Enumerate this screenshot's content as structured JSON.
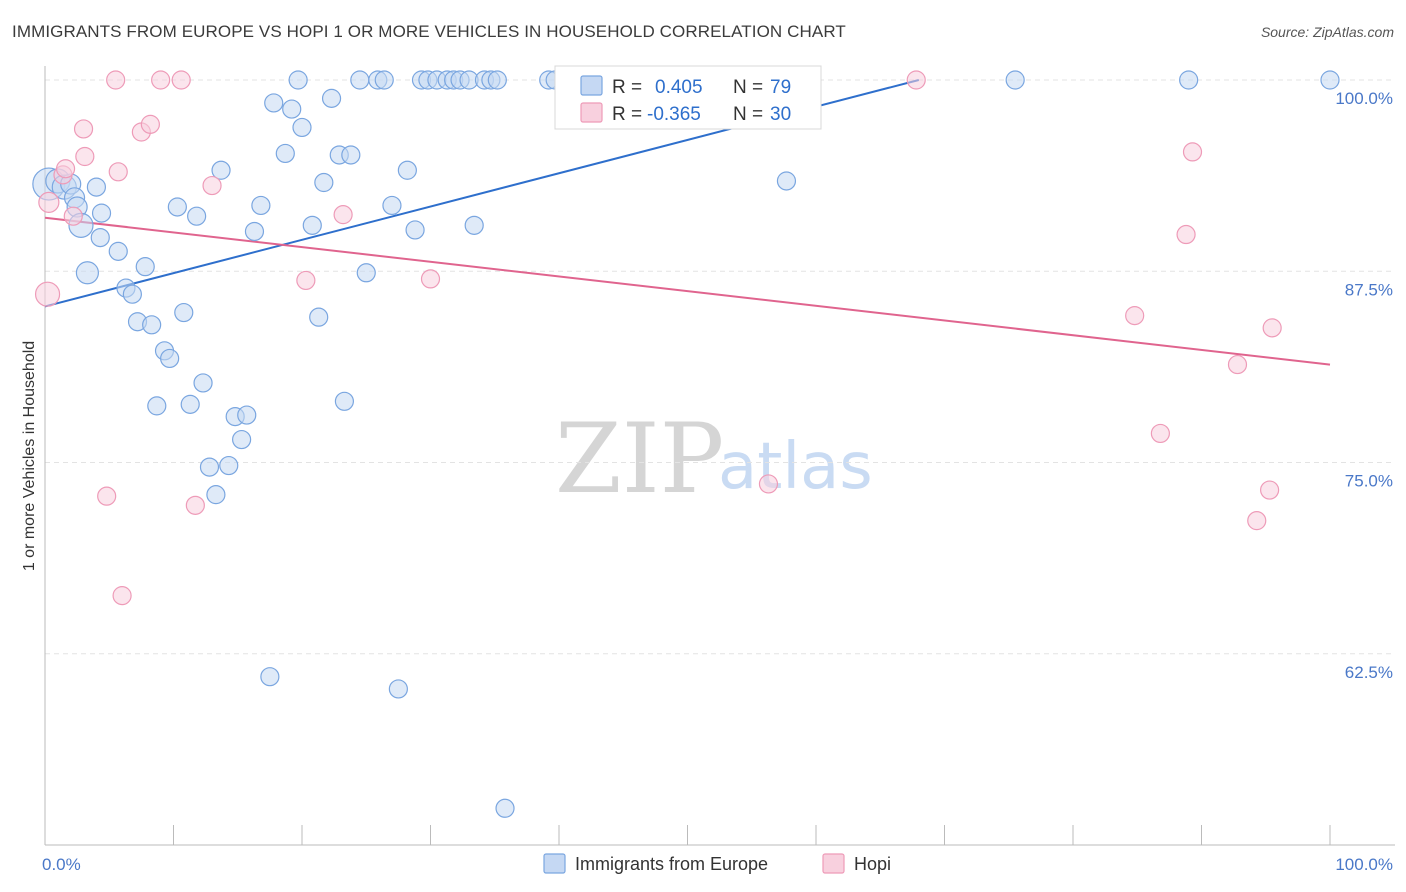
{
  "title": "IMMIGRANTS FROM EUROPE VS HOPI 1 OR MORE VEHICLES IN HOUSEHOLD CORRELATION CHART",
  "source": "Source: ZipAtlas.com",
  "watermark": {
    "zip": "ZIP",
    "atlas": "atlas"
  },
  "chart_data": {
    "type": "scatter",
    "ylabel": "1 or more Vehicles in Household",
    "xlim": [
      0,
      100
    ],
    "ylim": [
      50,
      100
    ],
    "x_ticks": [
      {
        "value": 0,
        "label": "0.0%"
      },
      {
        "value": 100,
        "label": "100.0%"
      }
    ],
    "y_ticks": [
      {
        "value": 100,
        "label": "100.0%"
      },
      {
        "value": 87.5,
        "label": "87.5%"
      },
      {
        "value": 75,
        "label": "75.0%"
      },
      {
        "value": 62.5,
        "label": "62.5%"
      }
    ],
    "legend_stats": [
      {
        "r_label": "R =",
        "r_value": "0.405",
        "n_label": "N =",
        "n_value": "79"
      },
      {
        "r_label": "R =",
        "r_value": "-0.365",
        "n_label": "N =",
        "n_value": "30"
      }
    ],
    "series": [
      {
        "name": "Immigrants from Europe",
        "color": "#7aa6e0",
        "fill": "#c5d8f3",
        "line_color": "#2e6fcc",
        "trend": [
          [
            0,
            85.2
          ],
          [
            68,
            100
          ]
        ],
        "points": [
          [
            0.3,
            93.2,
            16
          ],
          [
            1.0,
            93.4,
            12
          ],
          [
            1.5,
            93.0,
            12
          ],
          [
            2.0,
            93.2,
            10
          ],
          [
            2.3,
            92.3,
            10
          ],
          [
            2.5,
            91.7,
            10
          ],
          [
            2.8,
            90.5,
            12
          ],
          [
            3.3,
            87.4,
            11
          ],
          [
            4.4,
            91.3,
            9
          ],
          [
            4.3,
            89.7,
            9
          ],
          [
            5.7,
            88.8,
            9
          ],
          [
            6.3,
            86.4,
            9
          ],
          [
            6.8,
            86.0,
            9
          ],
          [
            7.2,
            84.2,
            9
          ],
          [
            7.8,
            87.8,
            9
          ],
          [
            8.3,
            84.0,
            9
          ],
          [
            8.7,
            78.7,
            9
          ],
          [
            9.3,
            82.3,
            9
          ],
          [
            9.7,
            81.8,
            9
          ],
          [
            10.3,
            91.7,
            9
          ],
          [
            10.8,
            84.8,
            9
          ],
          [
            11.3,
            78.8,
            9
          ],
          [
            11.8,
            91.1,
            9
          ],
          [
            12.3,
            80.2,
            9
          ],
          [
            12.8,
            74.7,
            9
          ],
          [
            13.3,
            72.9,
            9
          ],
          [
            13.7,
            94.1,
            9
          ],
          [
            14.3,
            74.8,
            9
          ],
          [
            14.8,
            78.0,
            9
          ],
          [
            15.3,
            76.5,
            9
          ],
          [
            15.7,
            78.1,
            9
          ],
          [
            16.3,
            90.1,
            9
          ],
          [
            16.8,
            91.8,
            9
          ],
          [
            17.5,
            61.0,
            9
          ],
          [
            17.8,
            98.5,
            9
          ],
          [
            18.7,
            95.2,
            9
          ],
          [
            19.2,
            98.1,
            9
          ],
          [
            19.7,
            100,
            9
          ],
          [
            20.0,
            96.9,
            9
          ],
          [
            20.8,
            90.5,
            9
          ],
          [
            21.3,
            84.5,
            9
          ],
          [
            21.7,
            93.3,
            9
          ],
          [
            22.3,
            98.8,
            9
          ],
          [
            22.9,
            95.1,
            9
          ],
          [
            23.3,
            79.0,
            9
          ],
          [
            23.8,
            95.1,
            9
          ],
          [
            24.5,
            100,
            9
          ],
          [
            25.0,
            87.4,
            9
          ],
          [
            25.9,
            100,
            9
          ],
          [
            26.4,
            100,
            9
          ],
          [
            27.0,
            91.8,
            9
          ],
          [
            27.5,
            60.2,
            9
          ],
          [
            28.2,
            94.1,
            9
          ],
          [
            28.8,
            90.2,
            9
          ],
          [
            29.3,
            100,
            9
          ],
          [
            29.8,
            100,
            9
          ],
          [
            30.5,
            100,
            9
          ],
          [
            31.3,
            100,
            9
          ],
          [
            31.8,
            100,
            9
          ],
          [
            32.3,
            100,
            9
          ],
          [
            33.0,
            100,
            9
          ],
          [
            33.4,
            90.5,
            9
          ],
          [
            34.2,
            100,
            9
          ],
          [
            34.7,
            100,
            9
          ],
          [
            35.2,
            100,
            9
          ],
          [
            35.8,
            52.4,
            9
          ],
          [
            39.2,
            100,
            9
          ],
          [
            39.7,
            100,
            9
          ],
          [
            40.5,
            100,
            9
          ],
          [
            45.0,
            100,
            9
          ],
          [
            45.5,
            100,
            9
          ],
          [
            52.2,
            100,
            9
          ],
          [
            55.5,
            100,
            9
          ],
          [
            57.7,
            93.4,
            9
          ],
          [
            59.6,
            100,
            9
          ],
          [
            75.5,
            100,
            9
          ],
          [
            89.0,
            100,
            9
          ],
          [
            100,
            100,
            9
          ],
          [
            4.0,
            93.0,
            9
          ]
        ]
      },
      {
        "name": "Hopi",
        "color": "#ee9bb8",
        "fill": "#f8d0de",
        "line_color": "#e0648e",
        "trend": [
          [
            0,
            91.0
          ],
          [
            100,
            81.4
          ]
        ],
        "points": [
          [
            0.2,
            86.0,
            12
          ],
          [
            0.3,
            92.0,
            10
          ],
          [
            1.4,
            93.8,
            9
          ],
          [
            1.6,
            94.2,
            9
          ],
          [
            2.2,
            91.1,
            9
          ],
          [
            3.0,
            96.8,
            9
          ],
          [
            3.1,
            95.0,
            9
          ],
          [
            4.8,
            72.8,
            9
          ],
          [
            5.5,
            100,
            9
          ],
          [
            5.7,
            94.0,
            9
          ],
          [
            6.0,
            66.3,
            9
          ],
          [
            7.5,
            96.6,
            9
          ],
          [
            8.2,
            97.1,
            9
          ],
          [
            9.0,
            100,
            9
          ],
          [
            10.6,
            100,
            9
          ],
          [
            11.7,
            72.2,
            9
          ],
          [
            13.0,
            93.1,
            9
          ],
          [
            20.3,
            86.9,
            9
          ],
          [
            23.2,
            91.2,
            9
          ],
          [
            30.0,
            87.0,
            9
          ],
          [
            56.3,
            73.6,
            9
          ],
          [
            67.8,
            100,
            9
          ],
          [
            84.8,
            84.6,
            9
          ],
          [
            86.8,
            76.9,
            9
          ],
          [
            88.8,
            89.9,
            9
          ],
          [
            89.3,
            95.3,
            9
          ],
          [
            92.8,
            81.4,
            9
          ],
          [
            94.3,
            71.2,
            9
          ],
          [
            95.3,
            73.2,
            9
          ],
          [
            95.5,
            83.8,
            9
          ]
        ]
      }
    ]
  }
}
